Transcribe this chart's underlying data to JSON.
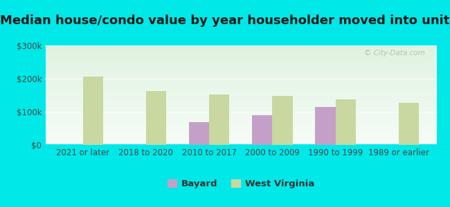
{
  "title": "Median house/condo value by year householder moved into unit",
  "categories": [
    "2021 or later",
    "2018 to 2020",
    "2010 to 2017",
    "2000 to 2009",
    "1990 to 1999",
    "1989 or earlier"
  ],
  "bayard_values": [
    null,
    null,
    68000,
    90000,
    115000,
    null
  ],
  "wv_values": [
    207000,
    163000,
    152000,
    147000,
    138000,
    128000
  ],
  "bayard_color": "#c4a0c8",
  "wv_color": "#c8d8a0",
  "background_outer": "#00e8e8",
  "ylim": [
    0,
    300000
  ],
  "yticks": [
    0,
    100000,
    200000,
    300000
  ],
  "ytick_labels": [
    "$0",
    "$100k",
    "$200k",
    "$300k"
  ],
  "bar_width": 0.32,
  "legend_labels": [
    "Bayard",
    "West Virginia"
  ],
  "watermark": "© City-Data.com",
  "title_fontsize": 13,
  "axis_fontsize": 8.5,
  "legend_fontsize": 9.5
}
